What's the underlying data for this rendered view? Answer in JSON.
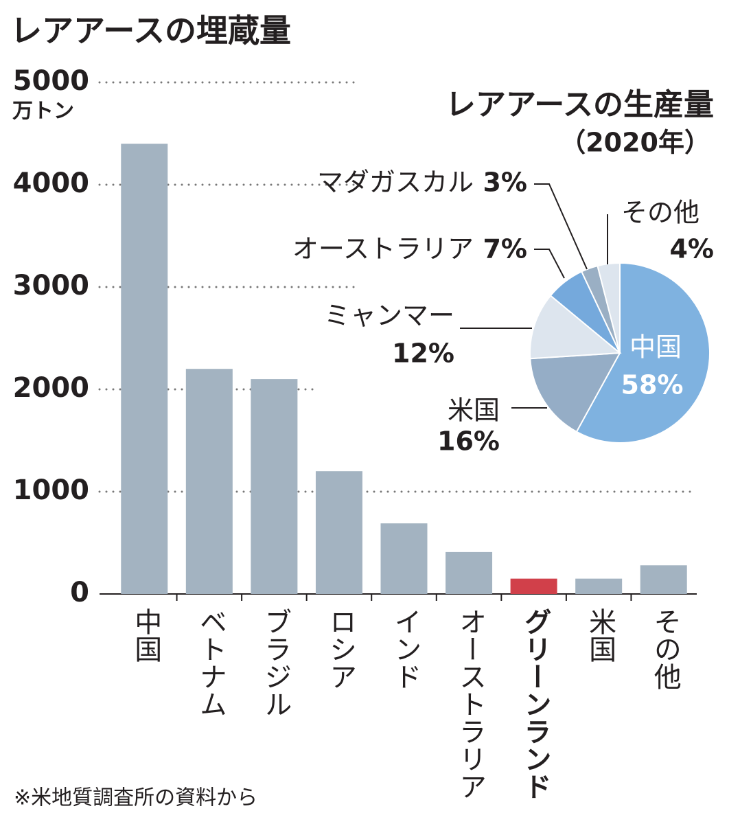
{
  "chart_data": [
    {
      "type": "bar",
      "title": "レアアースの埋蔵量",
      "y_unit": "万トン",
      "categories": [
        "中国",
        "ベトナム",
        "ブラジル",
        "ロシア",
        "インド",
        "オーストラリア",
        "グリーンランド",
        "米国",
        "その他"
      ],
      "values": [
        4400,
        2200,
        2100,
        1200,
        690,
        410,
        150,
        150,
        280
      ],
      "colors": [
        "#a3b3c1",
        "#a3b3c1",
        "#a3b3c1",
        "#a3b3c1",
        "#a3b3c1",
        "#a3b3c1",
        "#d1404a",
        "#a3b3c1",
        "#a3b3c1"
      ],
      "ylim": [
        0,
        5000
      ],
      "yticks": [
        0,
        1000,
        2000,
        3000,
        4000,
        5000
      ],
      "grid": true,
      "note": "※米地質調査所の資料から"
    },
    {
      "type": "pie",
      "title": "レアアースの生産量",
      "subtitle": "（2020年）",
      "categories": [
        "中国",
        "米国",
        "ミャンマー",
        "オーストラリア",
        "マダガスカル",
        "その他"
      ],
      "values": [
        58,
        16,
        12,
        7,
        3,
        4
      ],
      "value_labels": [
        "58%",
        "16%",
        "12%",
        "7%",
        "3%",
        "4%"
      ],
      "colors": [
        "#7fb2e0",
        "#95adc6",
        "#dde5ee",
        "#75a9dc",
        "#9aafc4",
        "#dde5ee"
      ]
    }
  ]
}
